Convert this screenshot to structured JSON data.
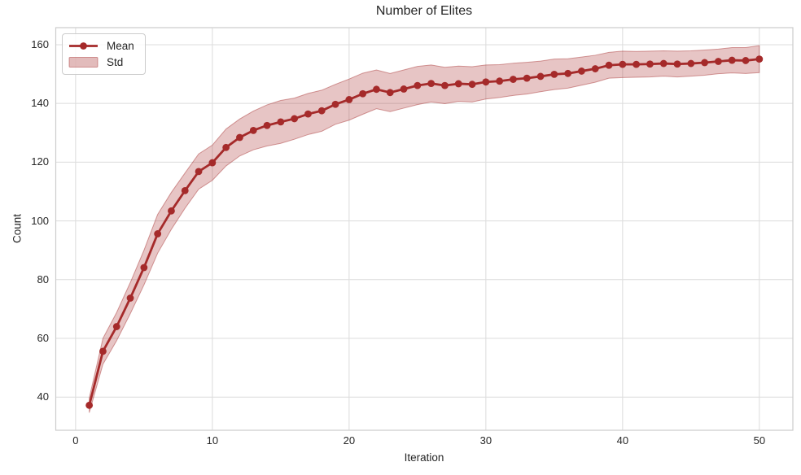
{
  "chart_data": {
    "type": "line",
    "title": "Number of Elites",
    "xlabel": "Iteration",
    "ylabel": "Count",
    "x": [
      1,
      2,
      3,
      4,
      5,
      6,
      7,
      8,
      9,
      10,
      11,
      12,
      13,
      14,
      15,
      16,
      17,
      18,
      19,
      20,
      21,
      22,
      23,
      24,
      25,
      26,
      27,
      28,
      29,
      30,
      31,
      32,
      33,
      34,
      35,
      36,
      37,
      38,
      39,
      40,
      41,
      42,
      43,
      44,
      45,
      46,
      47,
      48,
      49,
      50
    ],
    "series": [
      {
        "name": "Mean",
        "style": "line+markers",
        "color": "#A52A2A",
        "values": [
          37.2,
          55.6,
          64.0,
          73.7,
          84.1,
          95.6,
          103.4,
          110.3,
          116.8,
          119.8,
          125.0,
          128.4,
          130.8,
          132.5,
          133.7,
          134.8,
          136.4,
          137.5,
          139.7,
          141.3,
          143.3,
          144.8,
          143.7,
          144.9,
          146.1,
          146.8,
          146.1,
          146.7,
          146.5,
          147.3,
          147.6,
          148.2,
          148.6,
          149.2,
          149.9,
          150.2,
          151.0,
          151.8,
          153.0,
          153.3,
          153.3,
          153.4,
          153.6,
          153.4,
          153.6,
          153.9,
          154.3,
          154.7,
          154.6,
          155.1
        ]
      },
      {
        "name": "Std",
        "style": "band",
        "color": "#A52A2A",
        "fill_opacity": 0.27,
        "edge_opacity": 0.45,
        "std": [
          2.5,
          4.4,
          4.8,
          5.3,
          5.9,
          6.6,
          6.3,
          6.0,
          6.0,
          6.0,
          6.3,
          6.3,
          6.6,
          7.0,
          7.3,
          7.0,
          7.0,
          7.0,
          6.8,
          7.0,
          7.0,
          6.6,
          6.5,
          6.5,
          6.5,
          6.3,
          6.2,
          6.0,
          6.0,
          5.8,
          5.6,
          5.5,
          5.4,
          5.2,
          5.2,
          5.0,
          4.8,
          4.6,
          4.4,
          4.5,
          4.4,
          4.4,
          4.3,
          4.4,
          4.3,
          4.3,
          4.2,
          4.3,
          4.4,
          4.6
        ]
      }
    ],
    "xticks": [
      0,
      10,
      20,
      30,
      40,
      50
    ],
    "yticks": [
      40,
      60,
      80,
      100,
      120,
      140,
      160
    ],
    "xlim": [
      -1.45,
      52.45
    ],
    "ylim": [
      28.7,
      165.8
    ],
    "grid": true,
    "grid_color": "#dcdcdc",
    "spine_color": "#cccccc",
    "text_color": "#262626",
    "background": "#ffffff",
    "legend": {
      "position": "upper left",
      "entries": [
        "Mean",
        "Std"
      ]
    }
  }
}
